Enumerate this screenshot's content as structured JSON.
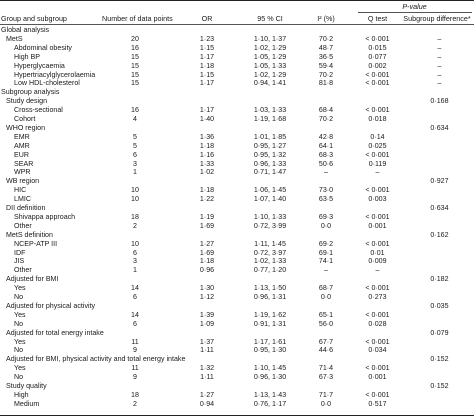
{
  "header": {
    "pvalue": "P-value",
    "group": "Group and subgroup",
    "n": "Number of data points",
    "or": "OR",
    "ci": "95 % CI",
    "i2": "I² (%)",
    "q": "Q test",
    "sd": "Subgroup difference*"
  },
  "rows": [
    {
      "label": "Global analysis",
      "level": 1
    },
    {
      "label": "MetS",
      "level": 2,
      "n": "20",
      "or": "1·23",
      "ci": "1·10, 1·37",
      "i2": "70·2",
      "q": "< 0·001",
      "sd": "–"
    },
    {
      "label": "Abdominal obesity",
      "level": 3,
      "n": "16",
      "or": "1·15",
      "ci": "1·02, 1·29",
      "i2": "48·7",
      "q": "0·015",
      "sd": "–"
    },
    {
      "label": "High BP",
      "level": 3,
      "n": "15",
      "or": "1·17",
      "ci": "1·05, 1·29",
      "i2": "36·5",
      "q": "0·077",
      "sd": "–"
    },
    {
      "label": "Hyperglycaemia",
      "level": 3,
      "n": "15",
      "or": "1·18",
      "ci": "1·05, 1·33",
      "i2": "59·4",
      "q": "0·002",
      "sd": "–"
    },
    {
      "label": "Hypertriacylglycerolaemia",
      "level": 3,
      "n": "15",
      "or": "1·15",
      "ci": "1·02, 1·29",
      "i2": "70·2",
      "q": "< 0·001",
      "sd": "–"
    },
    {
      "label": "Low HDL-cholesterol",
      "level": 3,
      "n": "15",
      "or": "1·17",
      "ci": "0·94, 1·41",
      "i2": "81·8",
      "q": "< 0·001",
      "sd": "–"
    },
    {
      "label": "Subgroup analysis",
      "level": 1
    },
    {
      "label": "Study design",
      "level": 2,
      "sd": "0·168"
    },
    {
      "label": "Cross-sectional",
      "level": 3,
      "n": "16",
      "or": "1·17",
      "ci": "1·03, 1·33",
      "i2": "68·4",
      "q": "< 0·001",
      "sd": ""
    },
    {
      "label": "Cohort",
      "level": 3,
      "n": "4",
      "or": "1·40",
      "ci": "1·19, 1·68",
      "i2": "70·2",
      "q": "0·018",
      "sd": ""
    },
    {
      "label": "WHO region",
      "level": 2,
      "sd": "0·634"
    },
    {
      "label": "EMR",
      "level": 3,
      "n": "5",
      "or": "1·36",
      "ci": "1·01, 1·85",
      "i2": "42·8",
      "q": "0·14",
      "sd": ""
    },
    {
      "label": "AMR",
      "level": 3,
      "n": "5",
      "or": "1·18",
      "ci": "0·95, 1·27",
      "i2": "64·1",
      "q": "0·025",
      "sd": ""
    },
    {
      "label": "EUR",
      "level": 3,
      "n": "6",
      "or": "1·16",
      "ci": "0·95, 1·32",
      "i2": "68·3",
      "q": "< 0·001",
      "sd": ""
    },
    {
      "label": "SEAR",
      "level": 3,
      "n": "3",
      "or": "1·33",
      "ci": "0·96, 1·33",
      "i2": "50·6",
      "q": "0·119",
      "sd": ""
    },
    {
      "label": "WPR",
      "level": 3,
      "n": "1",
      "or": "1·02",
      "ci": "0·71, 1·47",
      "i2": "–",
      "q": "–",
      "sd": ""
    },
    {
      "label": "WB region",
      "level": 2,
      "sd": "0·927"
    },
    {
      "label": "HIC",
      "level": 3,
      "n": "10",
      "or": "1·18",
      "ci": "1·06, 1·45",
      "i2": "73·0",
      "q": "< 0·001",
      "sd": ""
    },
    {
      "label": "LMIC",
      "level": 3,
      "n": "10",
      "or": "1·22",
      "ci": "1·07, 1·40",
      "i2": "63·5",
      "q": "0·003",
      "sd": ""
    },
    {
      "label": "DII definition",
      "level": 2,
      "sd": "0·634"
    },
    {
      "label": "Shivappa approach",
      "level": 3,
      "n": "18",
      "or": "1·19",
      "ci": "1·10, 1·33",
      "i2": "69·3",
      "q": "< 0·001",
      "sd": ""
    },
    {
      "label": "Other",
      "level": 3,
      "n": "2",
      "or": "1·69",
      "ci": "0·72, 3·99",
      "i2": "0·0",
      "q": "0·001",
      "sd": ""
    },
    {
      "label": "MetS definition",
      "level": 2,
      "sd": "0·162"
    },
    {
      "label": "NCEP-ATP III",
      "level": 3,
      "n": "10",
      "or": "1·27",
      "ci": "1·11, 1·45",
      "i2": "69·2",
      "q": "< 0·001",
      "sd": ""
    },
    {
      "label": "IDF",
      "level": 3,
      "n": "6",
      "or": "1·69",
      "ci": "0·72, 3·97",
      "i2": "69·1",
      "q": "0·01",
      "sd": ""
    },
    {
      "label": "JIS",
      "level": 3,
      "n": "3",
      "or": "1·18",
      "ci": "1·02, 1·33",
      "i2": "74·1",
      "q": "0·009",
      "sd": ""
    },
    {
      "label": "Other",
      "level": 3,
      "n": "1",
      "or": "0·96",
      "ci": "0·77, 1·20",
      "i2": "–",
      "q": "–",
      "sd": ""
    },
    {
      "label": "Adjusted for BMI",
      "level": 2,
      "sd": "0·182"
    },
    {
      "label": "Yes",
      "level": 3,
      "n": "14",
      "or": "1·30",
      "ci": "1·13, 1·50",
      "i2": "68·7",
      "q": "< 0·001",
      "sd": ""
    },
    {
      "label": "No",
      "level": 3,
      "n": "6",
      "or": "1·12",
      "ci": "0·96, 1·31",
      "i2": "0·0",
      "q": "0·273",
      "sd": ""
    },
    {
      "label": "Adjusted for physical activity",
      "level": 2,
      "sd": "0·035"
    },
    {
      "label": "Yes",
      "level": 3,
      "n": "14",
      "or": "1·39",
      "ci": "1·19, 1·62",
      "i2": "65·1",
      "q": "< 0·001",
      "sd": ""
    },
    {
      "label": "No",
      "level": 3,
      "n": "6",
      "or": "1·09",
      "ci": "0·91, 1·31",
      "i2": "56·0",
      "q": "0·028",
      "sd": ""
    },
    {
      "label": "Adjusted for total energy intake",
      "level": 2,
      "sd": "0·079"
    },
    {
      "label": "Yes",
      "level": 3,
      "n": "11",
      "or": "1·37",
      "ci": "1·17, 1·61",
      "i2": "67·7",
      "q": "< 0·001",
      "sd": ""
    },
    {
      "label": "No",
      "level": 3,
      "n": "9",
      "or": "1·11",
      "ci": "0·95, 1·30",
      "i2": "44·6",
      "q": "0·034",
      "sd": ""
    },
    {
      "label": "Adjusted for BMI, physical activity and total energy intake",
      "level": 2,
      "sd": "0·152"
    },
    {
      "label": "Yes",
      "level": 3,
      "n": "11",
      "or": "1·32",
      "ci": "1·10, 1·45",
      "i2": "71·4",
      "q": "< 0·001",
      "sd": ""
    },
    {
      "label": "No",
      "level": 3,
      "n": "9",
      "or": "1·11",
      "ci": "0·96, 1·30",
      "i2": "67·3",
      "q": "0·001",
      "sd": ""
    },
    {
      "label": "Study quality",
      "level": 2,
      "sd": "0·152"
    },
    {
      "label": "High",
      "level": 3,
      "n": "18",
      "or": "1·27",
      "ci": "1·13, 1·43",
      "i2": "71·7",
      "q": "< 0·001",
      "sd": ""
    },
    {
      "label": "Medium",
      "level": 3,
      "n": "2",
      "or": "0·94",
      "ci": "0·76, 1·17",
      "i2": "0·0",
      "q": "0·517",
      "sd": ""
    }
  ]
}
